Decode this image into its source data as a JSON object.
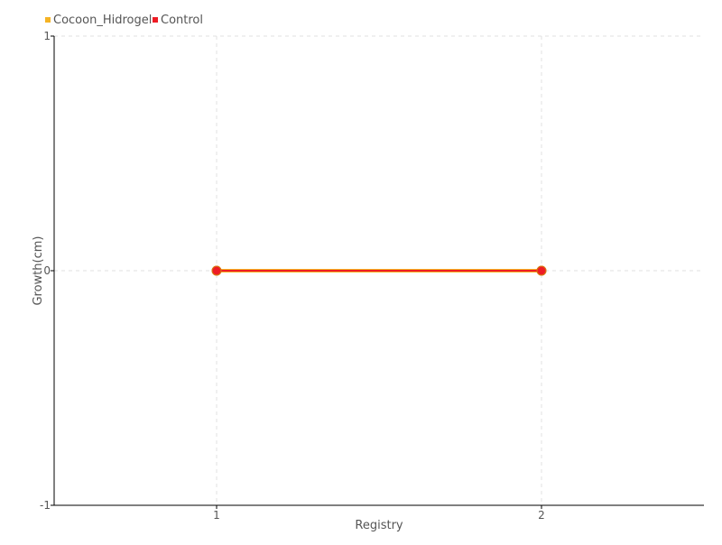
{
  "chart_data": {
    "type": "line",
    "title": "",
    "xlabel": "Registry",
    "ylabel": "Growth(cm)",
    "categories": [
      "1",
      "2"
    ],
    "ylim": [
      -1,
      1
    ],
    "yticks": [
      "1",
      "0",
      "-1"
    ],
    "grid": true,
    "legend_placement": "top-left",
    "series": [
      {
        "name": "Cocoon_Hidrogel",
        "values": [
          0,
          0
        ],
        "color": "#f5b324"
      },
      {
        "name": "Control",
        "values": [
          0,
          0
        ],
        "color": "#ee1c25"
      }
    ]
  }
}
